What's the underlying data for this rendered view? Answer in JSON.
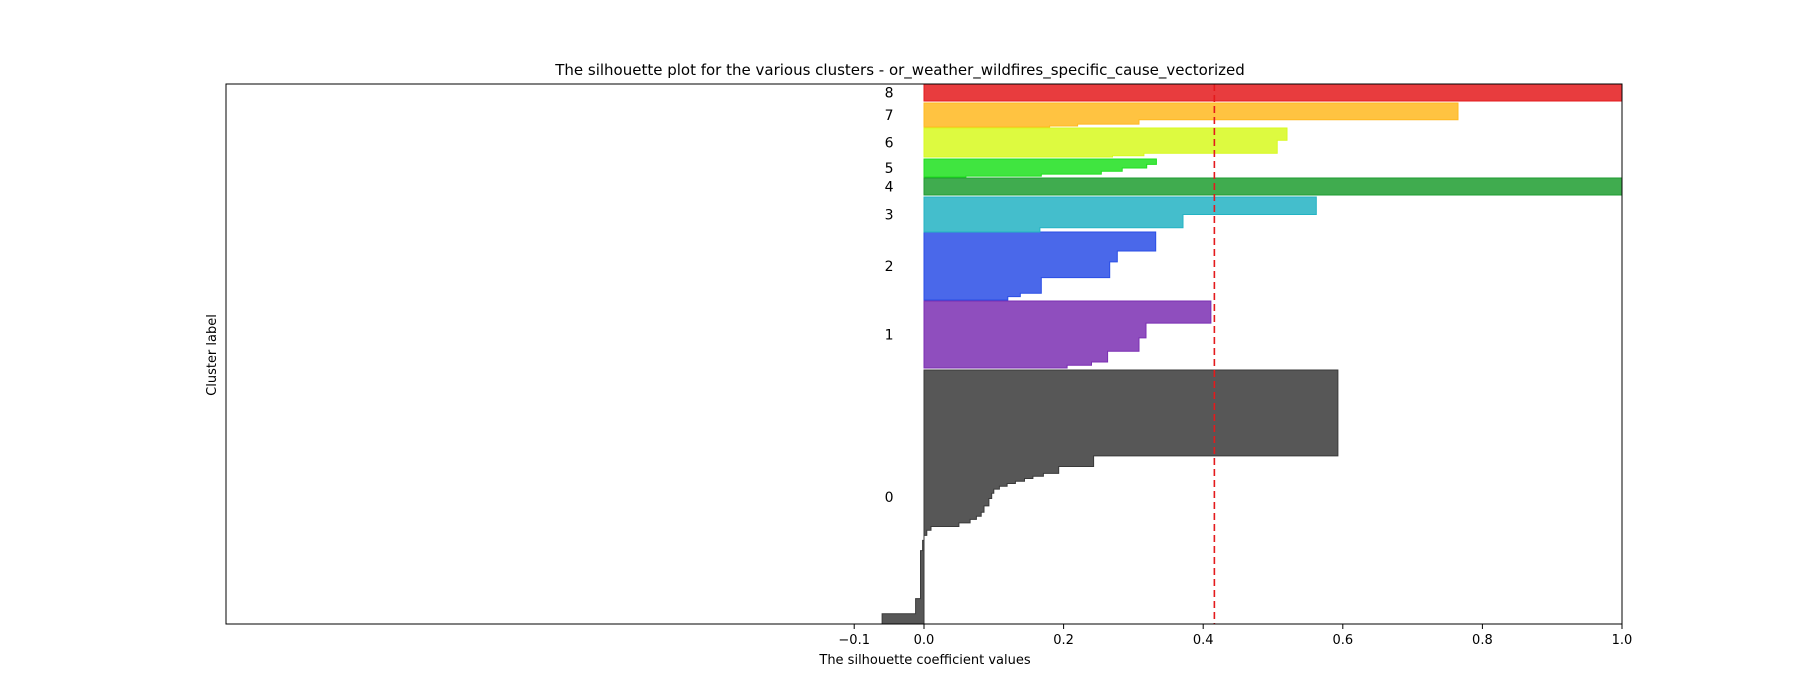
{
  "chart_data": {
    "type": "area",
    "title": "The silhouette plot for the various clusters - or_weather_wildfires_specific_cause_vectorized",
    "xlabel": "The silhouette coefficient values",
    "ylabel": "Cluster label",
    "xlim": [
      -1.0,
      1.0
    ],
    "xticks": [
      -0.1,
      0.0,
      0.2,
      0.4,
      0.6,
      0.8,
      1.0
    ],
    "xtick_labels": [
      "−0.1",
      "0.0",
      "0.2",
      "0.4",
      "0.6",
      "0.8",
      "1.0"
    ],
    "average_silhouette": 0.416,
    "average_line_color": "#e41a1c",
    "grid": false,
    "legend": "none",
    "clusters": [
      {
        "label": "0",
        "color": "#3a3a3a",
        "profile": [
          [
            0.0,
            0.593
          ],
          [
            0.338,
            0.243
          ],
          [
            0.38,
            0.193
          ],
          [
            0.407,
            0.171
          ],
          [
            0.418,
            0.156
          ],
          [
            0.427,
            0.144
          ],
          [
            0.438,
            0.131
          ],
          [
            0.447,
            0.119
          ],
          [
            0.458,
            0.108
          ],
          [
            0.469,
            0.1
          ],
          [
            0.485,
            0.097
          ],
          [
            0.506,
            0.093
          ],
          [
            0.535,
            0.086
          ],
          [
            0.56,
            0.082
          ],
          [
            0.576,
            0.075
          ],
          [
            0.588,
            0.066
          ],
          [
            0.602,
            0.05
          ],
          [
            0.616,
            0.01
          ],
          [
            0.631,
            0.004
          ],
          [
            0.651,
            0.0
          ],
          [
            0.671,
            -0.002
          ],
          [
            0.711,
            -0.005
          ],
          [
            0.9,
            -0.012
          ],
          [
            0.96,
            -0.06
          ]
        ]
      },
      {
        "label": "1",
        "color": "#7b2fb3",
        "profile": [
          [
            0.0,
            0.411
          ],
          [
            0.33,
            0.318
          ],
          [
            0.55,
            0.308
          ],
          [
            0.75,
            0.263
          ],
          [
            0.91,
            0.24
          ],
          [
            0.96,
            0.205
          ]
        ]
      },
      {
        "label": "2",
        "color": "#2a4ee6",
        "profile": [
          [
            0.0,
            0.332
          ],
          [
            0.28,
            0.277
          ],
          [
            0.44,
            0.266
          ],
          [
            0.67,
            0.168
          ],
          [
            0.9,
            0.138
          ],
          [
            0.95,
            0.12
          ]
        ]
      },
      {
        "label": "3",
        "color": "#23b3c3",
        "profile": [
          [
            0.0,
            0.562
          ],
          [
            0.5,
            0.371
          ],
          [
            0.88,
            0.166
          ]
        ]
      },
      {
        "label": "4",
        "color": "#1e9d30",
        "profile": [
          [
            0.0,
            1.0
          ],
          [
            0.9,
            1.0
          ]
        ]
      },
      {
        "label": "5",
        "color": "#1ee01e",
        "profile": [
          [
            0.0,
            0.333
          ],
          [
            0.3,
            0.319
          ],
          [
            0.5,
            0.284
          ],
          [
            0.68,
            0.254
          ],
          [
            0.84,
            0.168
          ],
          [
            0.95,
            0.06
          ]
        ]
      },
      {
        "label": "6",
        "color": "#d7f91f",
        "profile": [
          [
            0.0,
            0.52
          ],
          [
            0.42,
            0.506
          ],
          [
            0.87,
            0.315
          ],
          [
            0.96,
            0.27
          ]
        ]
      },
      {
        "label": "7",
        "color": "#ffb820",
        "profile": [
          [
            0.0,
            0.765
          ],
          [
            0.7,
            0.308
          ],
          [
            0.88,
            0.22
          ],
          [
            0.96,
            0.18
          ]
        ]
      },
      {
        "label": "8",
        "color": "#e41a1c",
        "profile": [
          [
            0.0,
            1.0
          ],
          [
            0.9,
            1.0
          ]
        ]
      }
    ]
  }
}
